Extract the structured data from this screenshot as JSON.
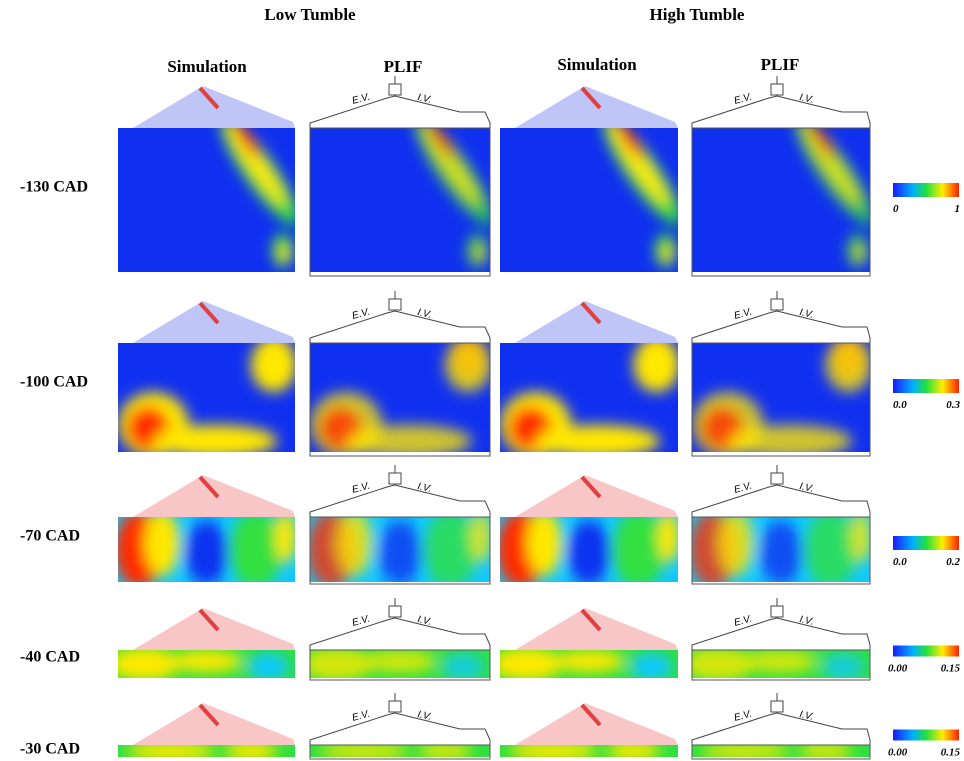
{
  "header": {
    "groups": [
      "Low Tumble",
      "High Tumble"
    ],
    "columns": [
      "Simulation",
      "PLIF",
      "Simulation",
      "PLIF"
    ]
  },
  "valve_labels": {
    "exhaust": "E.V.",
    "intake": "I.V."
  },
  "rows": [
    {
      "label": "-130 CAD",
      "scale_min": "0",
      "scale_max": "1"
    },
    {
      "label": "-100 CAD",
      "scale_min": "0.0",
      "scale_max": "0.3"
    },
    {
      "label": "-70 CAD",
      "scale_min": "0.0",
      "scale_max": "0.2"
    },
    {
      "label": "-40 CAD",
      "scale_min": "0.00",
      "scale_max": "0.15"
    },
    {
      "label": "-30 CAD",
      "scale_min": "0.00",
      "scale_max": "0.15"
    }
  ]
}
